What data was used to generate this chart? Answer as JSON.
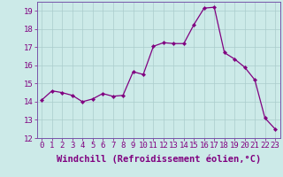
{
  "x": [
    0,
    1,
    2,
    3,
    4,
    5,
    6,
    7,
    8,
    9,
    10,
    11,
    12,
    13,
    14,
    15,
    16,
    17,
    18,
    19,
    20,
    21,
    22,
    23
  ],
  "y": [
    14.1,
    14.6,
    14.5,
    14.35,
    14.0,
    14.15,
    14.45,
    14.3,
    14.35,
    15.65,
    15.5,
    17.05,
    17.25,
    17.2,
    17.2,
    18.25,
    19.15,
    19.2,
    16.7,
    16.35,
    15.9,
    15.2,
    13.1,
    12.5
  ],
  "line_color": "#800080",
  "marker": "D",
  "marker_size": 2.2,
  "bg_color": "#cceae8",
  "grid_color": "#aacccc",
  "xlabel": "Windchill (Refroidissement éolien,°C)",
  "xlabel_fontsize": 7.5,
  "ylim": [
    12,
    19.5
  ],
  "xlim": [
    -0.5,
    23.5
  ],
  "yticks": [
    12,
    13,
    14,
    15,
    16,
    17,
    18,
    19
  ],
  "xticks": [
    0,
    1,
    2,
    3,
    4,
    5,
    6,
    7,
    8,
    9,
    10,
    11,
    12,
    13,
    14,
    15,
    16,
    17,
    18,
    19,
    20,
    21,
    22,
    23
  ],
  "tick_fontsize": 6.5,
  "spine_color": "#7755aa"
}
